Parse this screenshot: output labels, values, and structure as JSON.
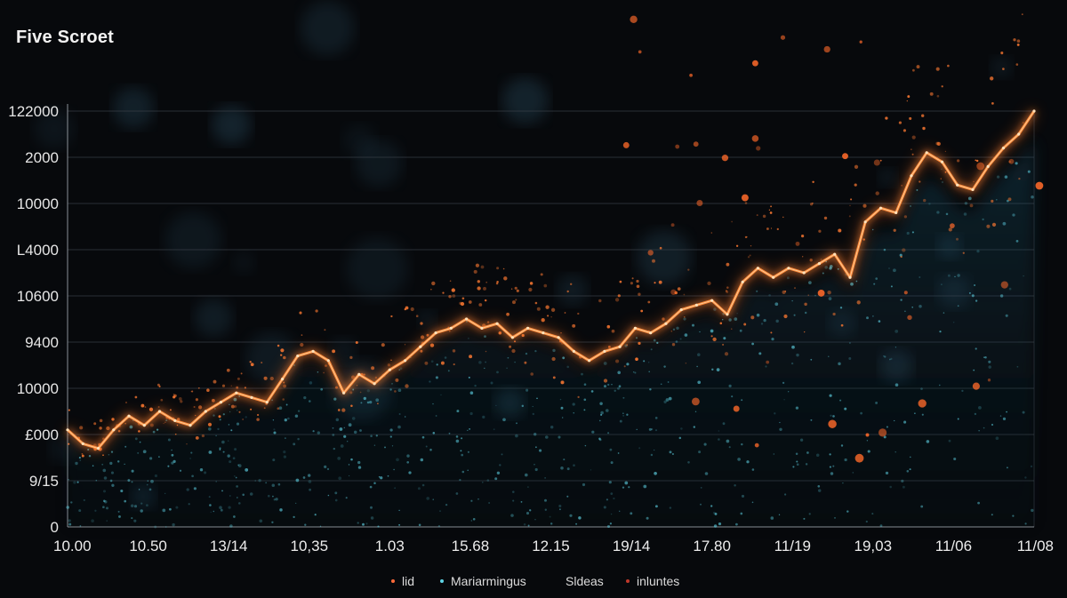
{
  "title": "Five Scroet",
  "colors": {
    "background": "#07090c",
    "line": "#ff8a3a",
    "line_glow": "#ff6a1a",
    "cyan": "#5fd4e6",
    "grid": "#3a4048"
  },
  "chart_data": {
    "type": "line",
    "title": "Five Scroet",
    "y_tick_labels": [
      "0",
      "9/15",
      "£000",
      "10000",
      "9400",
      "10600",
      "L4000",
      "10000",
      "2000",
      "122000"
    ],
    "x_tick_labels": [
      "10.00",
      "10.50",
      "13/14",
      "10,35",
      "1.03",
      "15.68",
      "12.15",
      "19/14",
      "17.80",
      "11/19",
      "19,03",
      "11/06",
      "11/08"
    ],
    "ylim": [
      0,
      9
    ],
    "grid": true,
    "legend_position": "bottom-center",
    "legend": [
      {
        "label": "lid",
        "marker": "dot",
        "color": "#ff6a3a"
      },
      {
        "label": "Mariarmingus",
        "marker": "dot",
        "color": "#5fd4e6"
      },
      {
        "label": "Sldeas",
        "marker": "line",
        "color": "#ff8a3a"
      },
      {
        "label": "inluntes",
        "marker": "dot",
        "color": "#c0392b"
      }
    ],
    "series": [
      {
        "values": [
          2.1,
          1.8,
          1.7,
          2.1,
          2.4,
          2.2,
          2.5,
          2.3,
          2.2,
          2.5,
          2.7,
          2.9,
          2.8,
          2.7,
          3.2,
          3.7,
          3.8,
          3.6,
          2.9,
          3.3,
          3.1,
          3.4,
          3.6,
          3.9,
          4.2,
          4.3,
          4.5,
          4.3,
          4.4,
          4.1,
          4.3,
          4.2,
          4.1,
          3.8,
          3.6,
          3.8,
          3.9,
          4.3,
          4.2,
          4.4,
          4.7,
          4.8,
          4.9,
          4.6,
          5.3,
          5.6,
          5.4,
          5.6,
          5.5,
          5.7,
          5.9,
          5.4,
          6.6,
          6.9,
          6.8,
          7.6,
          8.1,
          7.9,
          7.4,
          7.3,
          7.8,
          8.2,
          8.5,
          9.0
        ]
      }
    ]
  }
}
